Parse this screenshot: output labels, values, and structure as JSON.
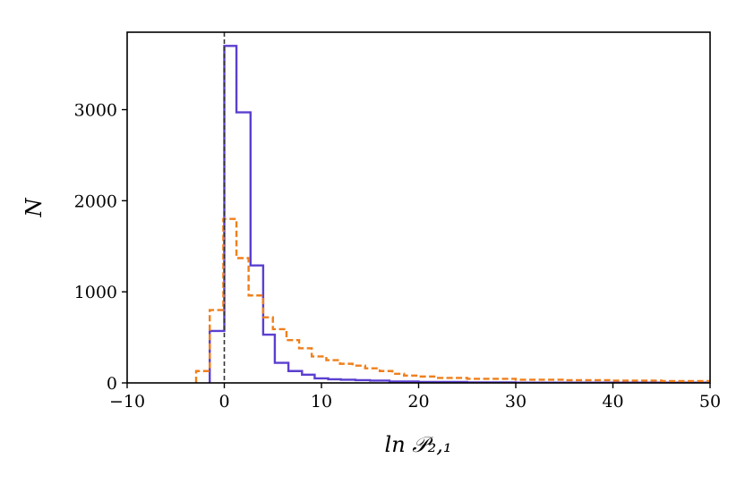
{
  "chart_data": {
    "type": "histogram",
    "xlabel": "ln 𝒫₂,₁",
    "ylabel": "N",
    "xlim": [
      -10,
      50
    ],
    "ylim": [
      0,
      3850
    ],
    "xticks": [
      -10,
      0,
      10,
      20,
      30,
      40,
      50
    ],
    "yticks": [
      0,
      1000,
      2000,
      3000
    ],
    "xtick_labels": [
      "−10",
      "0",
      "10",
      "20",
      "30",
      "40",
      "50"
    ],
    "ytick_labels": [
      "0",
      "1000",
      "2000",
      "3000"
    ],
    "grid": false,
    "legend": "none",
    "reference_line": {
      "x": 0,
      "style": "dashed",
      "color": "#333333"
    },
    "series": [
      {
        "style": "solid",
        "color": "#5b3fd0",
        "bin_edges": [
          -1.5,
          0,
          1.25,
          2.7,
          4.0,
          5.2,
          6.6,
          8.0,
          9.3,
          10.7,
          12.0,
          13.5,
          15.0,
          17.0,
          20.0,
          25.0,
          30.0,
          50.0
        ],
        "counts": [
          570,
          3700,
          2970,
          1290,
          530,
          220,
          130,
          90,
          50,
          40,
          35,
          30,
          25,
          15,
          10,
          5,
          3
        ]
      },
      {
        "style": "dashed",
        "color": "#f07f1b",
        "bin_edges": [
          -2.9,
          -1.5,
          -0.1,
          1.25,
          2.5,
          4.0,
          5.0,
          6.4,
          7.7,
          9.0,
          10.5,
          11.9,
          13.2,
          14.5,
          16.0,
          17.3,
          18.5,
          20.0,
          22.0,
          25.0,
          30.0,
          35.0,
          40.0,
          45.0,
          50.0
        ],
        "counts": [
          130,
          800,
          1800,
          1370,
          960,
          720,
          590,
          470,
          380,
          290,
          250,
          210,
          190,
          160,
          130,
          100,
          80,
          70,
          55,
          45,
          35,
          30,
          25,
          20
        ]
      }
    ]
  }
}
